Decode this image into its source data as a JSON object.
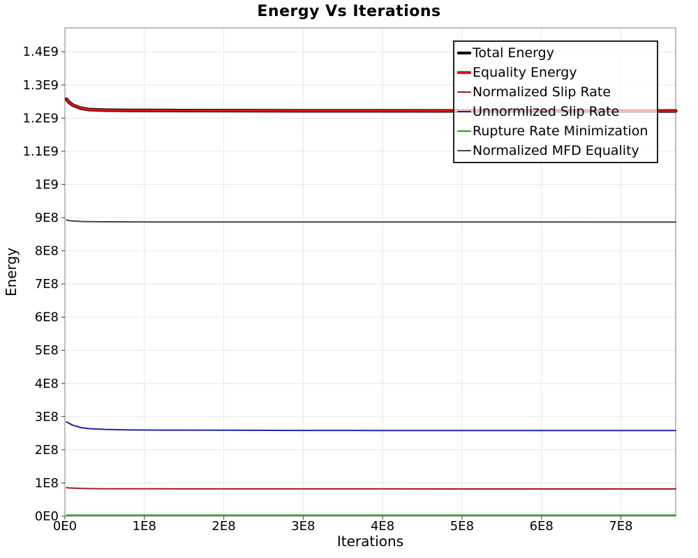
{
  "title": "Energy Vs Iterations",
  "chart_data": {
    "type": "line",
    "title": "Energy Vs Iterations",
    "xlabel": "Iterations",
    "ylabel": "Energy",
    "xlim": [
      0,
      769000000
    ],
    "ylim": [
      0,
      1472000000
    ],
    "grid": true,
    "legend_position": "top-right",
    "colors": {
      "grid": "#e8e8e8",
      "frame": "#9b9b9b",
      "tick": "#555555",
      "legend_border": "#222222"
    },
    "x_ticks": {
      "values": [
        0,
        100000000,
        200000000,
        300000000,
        400000000,
        500000000,
        600000000,
        700000000
      ],
      "labels": [
        "0E0",
        "1E8",
        "2E8",
        "3E8",
        "4E8",
        "5E8",
        "6E8",
        "7E8"
      ]
    },
    "y_ticks": {
      "values": [
        0,
        100000000,
        200000000,
        300000000,
        400000000,
        500000000,
        600000000,
        700000000,
        800000000,
        900000000,
        1000000000,
        1100000000,
        1200000000,
        1300000000,
        1400000000
      ],
      "labels": [
        "0E0",
        "1E8",
        "2E8",
        "3E8",
        "4E8",
        "5E8",
        "6E8",
        "7E8",
        "8E8",
        "9E8",
        "1E9",
        "1.1E9",
        "1.2E9",
        "1.3E9",
        "1.4E9"
      ]
    },
    "x": [
      2000000,
      5000000,
      10000000,
      20000000,
      30000000,
      50000000,
      80000000,
      120000000,
      200000000,
      300000000,
      400000000,
      500000000,
      600000000,
      700000000,
      769000000
    ],
    "series": [
      {
        "name": "Total Energy",
        "color": "#000000",
        "width": 5,
        "values": [
          1257000000,
          1248000000,
          1239000000,
          1230000000,
          1226000000,
          1224000000,
          1223500000,
          1223000000,
          1222500000,
          1222000000,
          1222000000,
          1221800000,
          1221700000,
          1221600000,
          1221500000
        ]
      },
      {
        "name": "Equality Energy",
        "color": "#e01111",
        "width": 3.2,
        "values": [
          1257000000,
          1248000000,
          1239000000,
          1230000000,
          1226000000,
          1224000000,
          1223500000,
          1223000000,
          1222500000,
          1222000000,
          1222000000,
          1221800000,
          1221700000,
          1221600000,
          1221500000
        ]
      },
      {
        "name": "Normalized Slip Rate",
        "color": "#a61c1c",
        "width": 2,
        "values": [
          86000000,
          85200000,
          84500000,
          83600000,
          83100000,
          82700000,
          82500000,
          82400000,
          82300000,
          82200000,
          82200000,
          82100000,
          82100000,
          82000000,
          82000000
        ]
      },
      {
        "name": "Unnormlized Slip Rate",
        "color": "#2222aa",
        "width": 2,
        "values": [
          284000000,
          280000000,
          274000000,
          267000000,
          264000000,
          261500000,
          260000000,
          259500000,
          259000000,
          258500000,
          258300000,
          258200000,
          258100000,
          258000000,
          258000000
        ]
      },
      {
        "name": "Rupture Rate Minimization",
        "color": "#10a810",
        "width": 2,
        "values": [
          3000000,
          3000000,
          3000000,
          3000000,
          3000000,
          3000000,
          3000000,
          3000000,
          3000000,
          3000000,
          3000000,
          3000000,
          3000000,
          3000000,
          3000000
        ]
      },
      {
        "name": "Normalized MFD Equality",
        "color": "#454545",
        "width": 2,
        "values": [
          893000000,
          891500000,
          890000000,
          888500000,
          888000000,
          887500000,
          887200000,
          887000000,
          887000000,
          886800000,
          886800000,
          886700000,
          886700000,
          886600000,
          886600000
        ]
      }
    ]
  }
}
